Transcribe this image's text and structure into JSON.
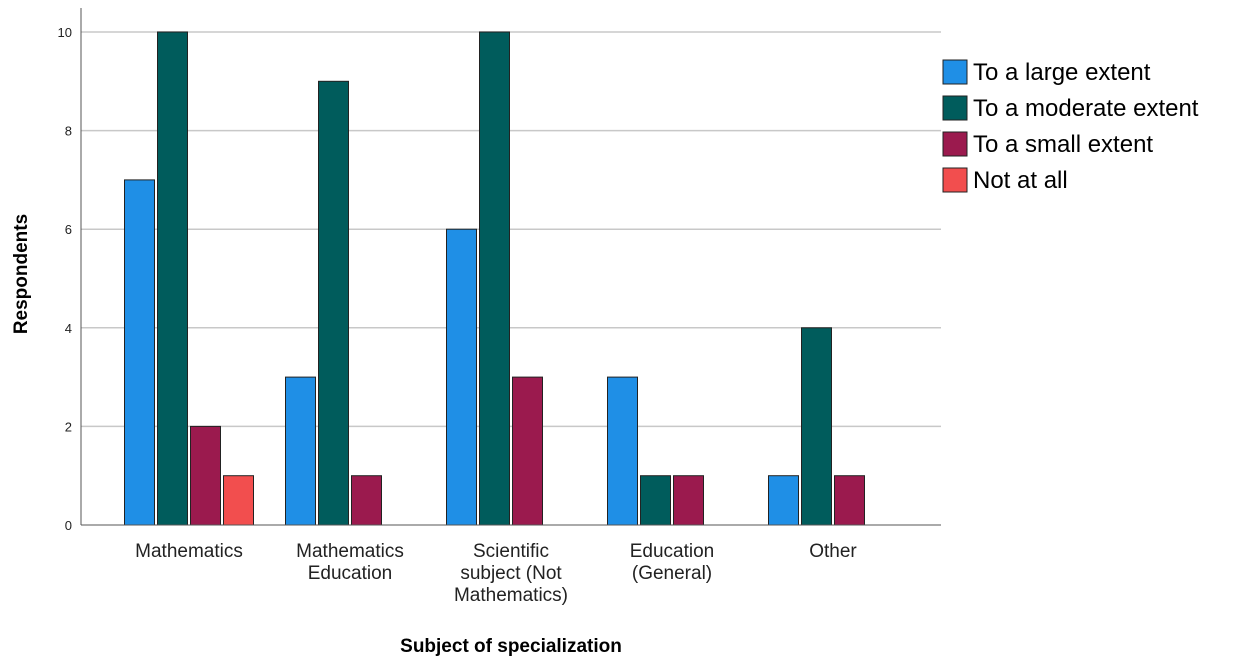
{
  "chart_data": {
    "type": "bar",
    "title": "",
    "xlabel": "Subject of specialization",
    "ylabel": "Respondents",
    "ylim": [
      0,
      10
    ],
    "yticks": [
      0,
      2,
      4,
      6,
      8,
      10
    ],
    "grid": true,
    "legend_position": "top-right",
    "categories": [
      [
        "Mathematics"
      ],
      [
        "Mathematics",
        "Education"
      ],
      [
        "Scientific",
        "subject (Not",
        "Mathematics)"
      ],
      [
        "Education",
        "(General)"
      ],
      [
        "Other"
      ]
    ],
    "series": [
      {
        "name": "To a large extent",
        "color": "#1f8fe6",
        "values": [
          7,
          3,
          6,
          3,
          1
        ]
      },
      {
        "name": "To a moderate extent",
        "color": "#005c5c",
        "values": [
          10,
          9,
          10,
          1,
          4
        ]
      },
      {
        "name": "To a small extent",
        "color": "#9b1a4e",
        "values": [
          2,
          1,
          3,
          1,
          1
        ]
      },
      {
        "name": "Not at all",
        "color": "#f24e4e",
        "values": [
          1,
          0,
          0,
          0,
          0
        ]
      }
    ]
  }
}
